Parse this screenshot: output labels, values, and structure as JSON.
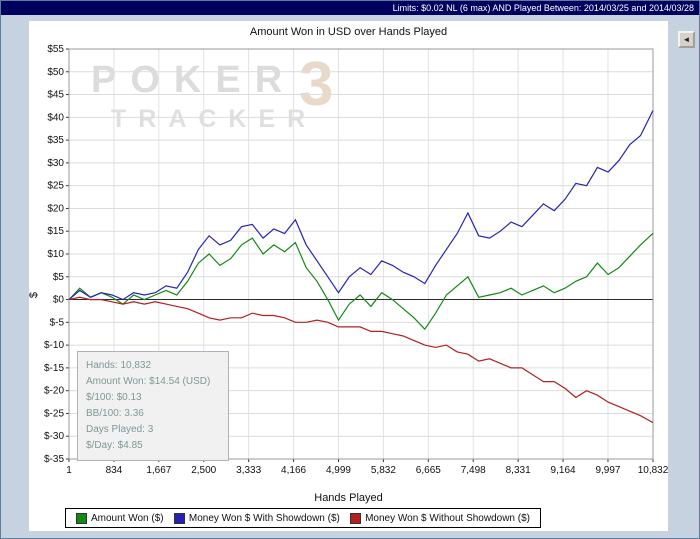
{
  "window": {
    "limits_text": "Limits: $0.02 NL (6 max) AND Played Between: 2014/03/25 and 2014/03/28",
    "collapse_button_glyph": "◄"
  },
  "colors": {
    "titlebar_bg": "#00005f",
    "window_bg": "#c6d2e0",
    "amount_won": "#128a12",
    "with_showdown": "#2424b4",
    "without_showdown": "#b22020"
  },
  "watermark": {
    "line1": "POKER",
    "line2": "TRACKER",
    "badge": "3"
  },
  "stats_box": {
    "lines": [
      "Hands: 10,832",
      "Amount Won: $14.54 (USD)",
      "$/100: $0.13",
      "BB/100: 3.36",
      "Days Played: 3",
      "$/Day: $4.85"
    ]
  },
  "chart_data": {
    "type": "line",
    "title": "Amount Won in USD over Hands Played",
    "xlabel": "Hands Played",
    "ylabel": "$",
    "grid": true,
    "legend_position": "bottom",
    "xlim": [
      1,
      10832
    ],
    "ylim": [
      -35,
      55
    ],
    "y_tick_values": [
      55,
      50,
      45,
      40,
      35,
      30,
      25,
      20,
      15,
      10,
      5,
      0,
      -5,
      -10,
      -15,
      -20,
      -25,
      -30,
      -35
    ],
    "y_tick_labels": [
      "$55",
      "$50",
      "$45",
      "$40",
      "$35",
      "$30",
      "$25",
      "$20",
      "$15",
      "$10",
      "$5",
      "$0",
      "$-5",
      "$-10",
      "$-15",
      "$-20",
      "$-25",
      "$-30",
      "$-35"
    ],
    "x_tick_values": [
      1,
      834,
      1667,
      2500,
      3333,
      4166,
      4999,
      5832,
      6665,
      7498,
      8331,
      9164,
      9997,
      10832
    ],
    "x_tick_labels": [
      "1",
      "834",
      "1,667",
      "2,500",
      "3,333",
      "4,166",
      "4,999",
      "5,832",
      "6,665",
      "7,498",
      "8,331",
      "9,164",
      "9,997",
      "10,832"
    ],
    "x": [
      1,
      200,
      400,
      600,
      800,
      1000,
      1200,
      1400,
      1600,
      1800,
      2000,
      2200,
      2400,
      2600,
      2800,
      3000,
      3200,
      3400,
      3600,
      3800,
      4000,
      4200,
      4400,
      4600,
      4800,
      5000,
      5200,
      5400,
      5600,
      5800,
      6000,
      6200,
      6400,
      6600,
      6800,
      7000,
      7200,
      7400,
      7600,
      7800,
      8000,
      8200,
      8400,
      8600,
      8800,
      9000,
      9200,
      9400,
      9600,
      9800,
      10000,
      10200,
      10400,
      10600,
      10832
    ],
    "series": [
      {
        "name": "Amount Won ($)",
        "color": "#128a12",
        "values": [
          0,
          2.5,
          0.5,
          1.5,
          0.5,
          -1,
          1,
          0,
          1,
          2,
          1,
          4,
          8,
          10,
          7.5,
          9,
          12,
          13.5,
          10,
          12,
          10.5,
          12.5,
          7,
          4,
          0,
          -4.5,
          -1,
          1,
          -1.5,
          1.5,
          0,
          -2,
          -4,
          -6.5,
          -3,
          1,
          3,
          5,
          0.5,
          1,
          1.5,
          2.5,
          1,
          2,
          3,
          1.5,
          2.5,
          4,
          5,
          8,
          5.5,
          7,
          9.5,
          12,
          14.54
        ]
      },
      {
        "name": "Money Won $ With Showdown ($)",
        "color": "#2424b4",
        "values": [
          0,
          2,
          0.5,
          1.5,
          1,
          0,
          1.5,
          1,
          1.5,
          3,
          2.5,
          6,
          11,
          14,
          12,
          13,
          16,
          16.5,
          13.5,
          15.5,
          14.5,
          17.5,
          12,
          8.5,
          5,
          1.5,
          5,
          7,
          5.5,
          8.5,
          7.5,
          6,
          5,
          3.5,
          7.5,
          11,
          14.5,
          19,
          14,
          13.5,
          15,
          17,
          16,
          18.5,
          21,
          19.5,
          22,
          25.5,
          25,
          29,
          28,
          30.5,
          34,
          36,
          41.5
        ]
      },
      {
        "name": "Money Won $ Without Showdown ($)",
        "color": "#b22020",
        "values": [
          0,
          0.5,
          0,
          0,
          -0.5,
          -1,
          -0.5,
          -1,
          -0.5,
          -1,
          -1.5,
          -2,
          -3,
          -4,
          -4.5,
          -4,
          -4,
          -3,
          -3.5,
          -3.5,
          -4,
          -5,
          -5,
          -4.5,
          -5,
          -6,
          -6,
          -6,
          -7,
          -7,
          -7.5,
          -8,
          -9,
          -10,
          -10.5,
          -10,
          -11.5,
          -12,
          -13.5,
          -13,
          -14,
          -15,
          -15,
          -16.5,
          -18,
          -18,
          -19.5,
          -21.5,
          -20,
          -21,
          -22.5,
          -23.5,
          -24.5,
          -25.5,
          -27
        ]
      }
    ]
  }
}
